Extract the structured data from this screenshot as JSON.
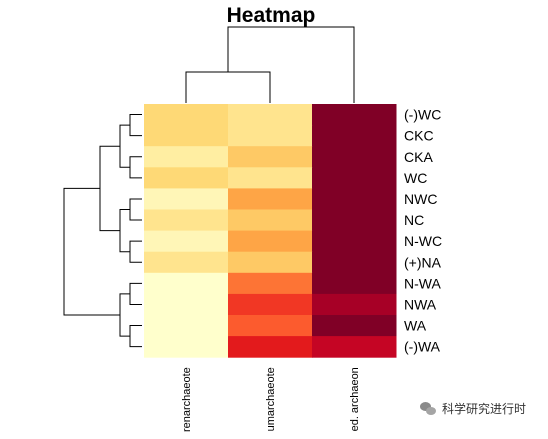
{
  "chart_data": {
    "type": "heatmap",
    "title": "Heatmap",
    "rows": [
      "(-)WC",
      "CKC",
      "CKA",
      "WC",
      "NWC",
      "NC",
      "N-WC",
      "(+)NA",
      "N-WA",
      "NWA",
      "WA",
      "(-)WA"
    ],
    "columns": [
      "renarchaeote",
      "umarchaeote",
      "ed. archaeon"
    ],
    "values": [
      [
        0.25,
        0.18,
        1.0
      ],
      [
        0.25,
        0.18,
        1.0
      ],
      [
        0.12,
        0.3,
        1.0
      ],
      [
        0.25,
        0.18,
        1.0
      ],
      [
        0.06,
        0.42,
        1.0
      ],
      [
        0.18,
        0.3,
        1.0
      ],
      [
        0.06,
        0.42,
        1.0
      ],
      [
        0.18,
        0.3,
        1.0
      ],
      [
        0.0,
        0.55,
        1.0
      ],
      [
        0.0,
        0.68,
        0.92
      ],
      [
        0.0,
        0.6,
        1.0
      ],
      [
        0.0,
        0.75,
        0.85
      ]
    ],
    "value_range": [
      0,
      1
    ],
    "colormap": [
      "#FFFFCC",
      "#FFEDA0",
      "#FED976",
      "#FEB24C",
      "#FD8D3C",
      "#FC4E2A",
      "#E31A1C",
      "#BD0026",
      "#800026"
    ],
    "row_dendrogram": [
      [
        0,
        1,
        0
      ],
      [
        2,
        3,
        0
      ],
      [
        4,
        5,
        0
      ],
      [
        6,
        7,
        0
      ],
      [
        8,
        9,
        0
      ],
      [
        10,
        11,
        0
      ],
      [
        0,
        2,
        1
      ],
      [
        4,
        6,
        1
      ],
      [
        8,
        10,
        1
      ],
      [
        0,
        4,
        2
      ],
      [
        0,
        8,
        3
      ]
    ],
    "col_dendrogram": [
      [
        0,
        1,
        0
      ],
      [
        0,
        2,
        1
      ]
    ]
  },
  "watermark": {
    "text": "科学研究进行时",
    "icon": "wechat-icon"
  }
}
